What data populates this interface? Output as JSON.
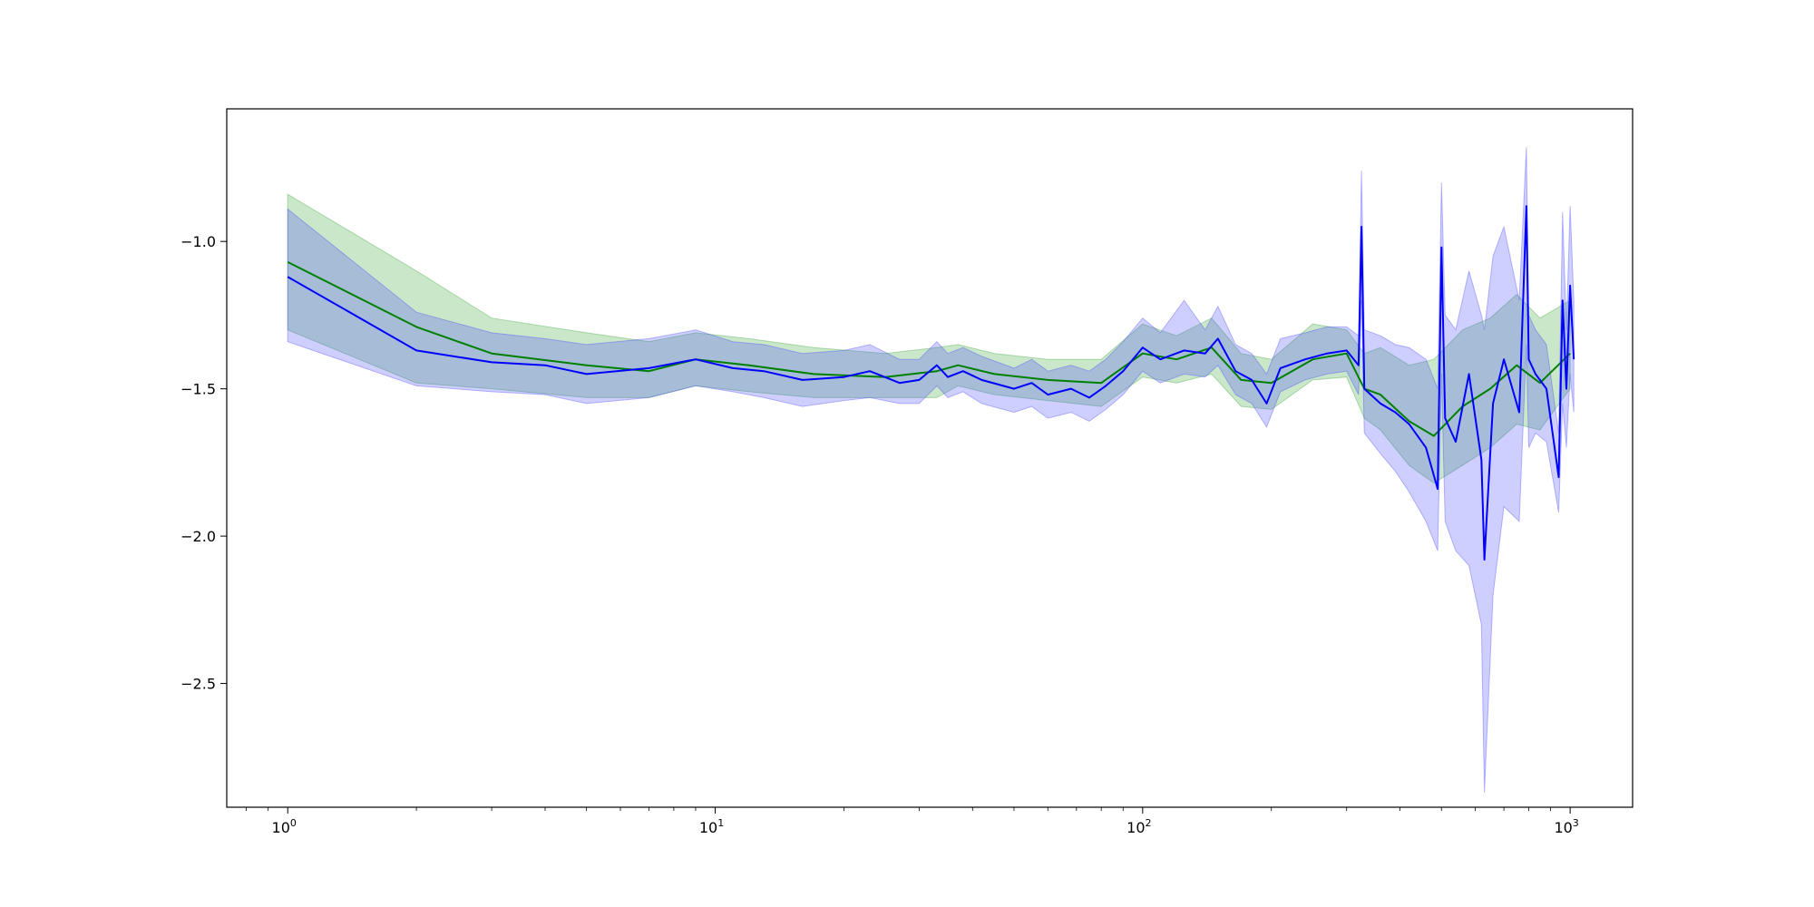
{
  "chart_data": {
    "type": "line",
    "title": "",
    "xlabel": "",
    "ylabel": "",
    "x_scale": "log",
    "xlim": [
      0.72,
      1400
    ],
    "ylim": [
      -2.92,
      -0.55
    ],
    "grid": false,
    "legend": "none",
    "x_ticks": [
      {
        "value": 1,
        "base": "10",
        "exp": "0"
      },
      {
        "value": 10,
        "base": "10",
        "exp": "1"
      },
      {
        "value": 100,
        "base": "10",
        "exp": "2"
      },
      {
        "value": 1000,
        "base": "10",
        "exp": "3"
      }
    ],
    "y_ticks": [
      {
        "value": -1.0,
        "label": "−1.0"
      },
      {
        "value": -1.5,
        "label": "−1.5"
      },
      {
        "value": -2.0,
        "label": "−2.0"
      },
      {
        "value": -2.5,
        "label": "−2.5"
      }
    ],
    "series": [
      {
        "color": "#008000",
        "band_color": "#2ca02c",
        "x": [
          1,
          2,
          3,
          5,
          7,
          9,
          12,
          17,
          25,
          33,
          37,
          45,
          60,
          80,
          100,
          120,
          145,
          170,
          200,
          250,
          300,
          330,
          360,
          420,
          480,
          560,
          650,
          750,
          850,
          1000
        ],
        "mean": [
          -1.07,
          -1.29,
          -1.38,
          -1.42,
          -1.44,
          -1.4,
          -1.42,
          -1.45,
          -1.46,
          -1.44,
          -1.42,
          -1.45,
          -1.47,
          -1.48,
          -1.38,
          -1.4,
          -1.36,
          -1.47,
          -1.48,
          -1.4,
          -1.38,
          -1.5,
          -1.52,
          -1.61,
          -1.66,
          -1.56,
          -1.5,
          -1.42,
          -1.48,
          -1.38
        ],
        "lower": [
          -1.3,
          -1.48,
          -1.5,
          -1.53,
          -1.53,
          -1.49,
          -1.51,
          -1.53,
          -1.53,
          -1.53,
          -1.49,
          -1.52,
          -1.54,
          -1.56,
          -1.46,
          -1.48,
          -1.45,
          -1.56,
          -1.57,
          -1.47,
          -1.46,
          -1.6,
          -1.64,
          -1.76,
          -1.82,
          -1.76,
          -1.7,
          -1.62,
          -1.64,
          -1.5
        ],
        "upper": [
          -0.84,
          -1.1,
          -1.26,
          -1.31,
          -1.34,
          -1.31,
          -1.33,
          -1.36,
          -1.38,
          -1.36,
          -1.35,
          -1.38,
          -1.4,
          -1.4,
          -1.28,
          -1.32,
          -1.26,
          -1.38,
          -1.4,
          -1.28,
          -1.3,
          -1.38,
          -1.36,
          -1.42,
          -1.4,
          -1.3,
          -1.26,
          -1.18,
          -1.26,
          -1.2
        ]
      },
      {
        "color": "#0000ff",
        "band_color": "#4040ff",
        "x": [
          1,
          2,
          3,
          4,
          5,
          7,
          9,
          11,
          13,
          16,
          20,
          23,
          27,
          30,
          33,
          35,
          38,
          42,
          50,
          55,
          60,
          68,
          75,
          82,
          90,
          100,
          110,
          125,
          140,
          150,
          165,
          180,
          195,
          210,
          240,
          270,
          300,
          320,
          325,
          330,
          360,
          390,
          420,
          460,
          490,
          500,
          510,
          540,
          580,
          620,
          630,
          660,
          700,
          760,
          790,
          800,
          830,
          880,
          940,
          960,
          980,
          1000,
          1020
        ],
        "mean": [
          -1.12,
          -1.37,
          -1.41,
          -1.42,
          -1.45,
          -1.43,
          -1.4,
          -1.43,
          -1.44,
          -1.47,
          -1.46,
          -1.44,
          -1.48,
          -1.47,
          -1.42,
          -1.46,
          -1.44,
          -1.47,
          -1.5,
          -1.48,
          -1.52,
          -1.5,
          -1.53,
          -1.49,
          -1.44,
          -1.36,
          -1.4,
          -1.37,
          -1.38,
          -1.33,
          -1.44,
          -1.47,
          -1.55,
          -1.43,
          -1.4,
          -1.38,
          -1.37,
          -1.42,
          -0.95,
          -1.5,
          -1.55,
          -1.58,
          -1.62,
          -1.7,
          -1.84,
          -1.02,
          -1.6,
          -1.68,
          -1.45,
          -1.74,
          -2.08,
          -1.55,
          -1.4,
          -1.58,
          -0.88,
          -1.4,
          -1.45,
          -1.5,
          -1.8,
          -1.2,
          -1.5,
          -1.15,
          -1.4
        ],
        "lower": [
          -1.34,
          -1.49,
          -1.51,
          -1.52,
          -1.55,
          -1.53,
          -1.49,
          -1.51,
          -1.53,
          -1.56,
          -1.54,
          -1.53,
          -1.55,
          -1.55,
          -1.49,
          -1.53,
          -1.51,
          -1.55,
          -1.58,
          -1.56,
          -1.6,
          -1.58,
          -1.61,
          -1.57,
          -1.52,
          -1.44,
          -1.48,
          -1.45,
          -1.46,
          -1.42,
          -1.52,
          -1.55,
          -1.63,
          -1.51,
          -1.47,
          -1.45,
          -1.44,
          -1.52,
          -1.2,
          -1.65,
          -1.72,
          -1.78,
          -1.85,
          -1.95,
          -2.05,
          -1.45,
          -1.95,
          -2.05,
          -2.1,
          -2.3,
          -2.87,
          -2.2,
          -1.9,
          -1.95,
          -1.35,
          -1.7,
          -1.65,
          -1.68,
          -1.92,
          -1.55,
          -1.7,
          -1.45,
          -1.58
        ],
        "upper": [
          -0.89,
          -1.24,
          -1.31,
          -1.33,
          -1.35,
          -1.33,
          -1.3,
          -1.34,
          -1.35,
          -1.38,
          -1.37,
          -1.35,
          -1.4,
          -1.4,
          -1.34,
          -1.38,
          -1.36,
          -1.39,
          -1.43,
          -1.4,
          -1.44,
          -1.42,
          -1.44,
          -1.4,
          -1.34,
          -1.26,
          -1.31,
          -1.2,
          -1.3,
          -1.22,
          -1.35,
          -1.38,
          -1.45,
          -1.33,
          -1.31,
          -1.29,
          -1.29,
          -1.32,
          -0.76,
          -1.3,
          -1.32,
          -1.35,
          -1.36,
          -1.4,
          -1.5,
          -0.8,
          -1.25,
          -1.3,
          -1.1,
          -1.25,
          -1.3,
          -1.05,
          -0.95,
          -1.2,
          -0.68,
          -1.25,
          -1.3,
          -1.35,
          -1.65,
          -0.9,
          -1.3,
          -0.88,
          -1.2
        ]
      }
    ]
  }
}
